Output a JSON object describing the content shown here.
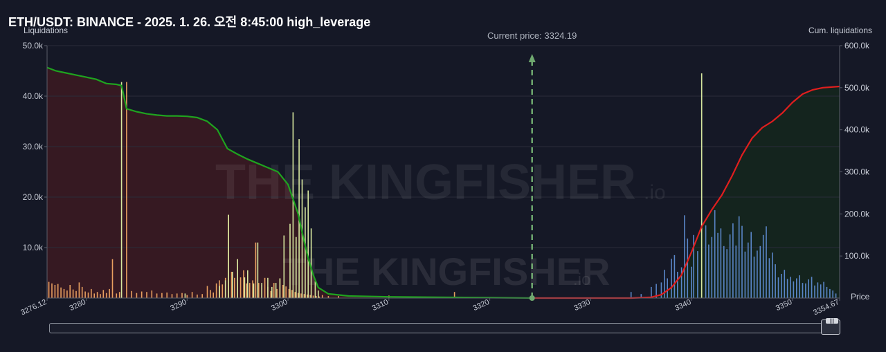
{
  "header": {
    "title": "ETH/USDT: BINANCE - 2025. 1. 26. 오전 8:45:00 high_leverage"
  },
  "watermark": {
    "brand": "THE KINGFISHER",
    "suffix": ".io"
  },
  "chart_data": {
    "type": "bar",
    "ylabel_left": "Liquidations",
    "ylabel_right": "Cum. liquidations",
    "xlabel": "Price",
    "current_price_label": "Current price: 3324.19",
    "current_price": 3324.19,
    "xlim": [
      3276.12,
      3354.67
    ],
    "ylim_left": [
      0,
      50000
    ],
    "ylim_right": [
      0,
      600000
    ],
    "x_ticks": [
      "3276.12",
      "3280",
      "3290",
      "3300",
      "3310",
      "3320",
      "3330",
      "3340",
      "3350",
      "3354.67"
    ],
    "x_tick_values": [
      3276.12,
      3280,
      3290,
      3300,
      3310,
      3320,
      3330,
      3340,
      3350,
      3354.67
    ],
    "y_ticks_left": [
      "10.0k",
      "20.0k",
      "30.0k",
      "40.0k",
      "50.0k"
    ],
    "y_tick_values_left": [
      10000,
      20000,
      30000,
      40000,
      50000
    ],
    "y_ticks_right": [
      "100.0k",
      "200.0k",
      "300.0k",
      "400.0k",
      "500.0k",
      "600.0k"
    ],
    "y_tick_values_right": [
      100000,
      200000,
      300000,
      400000,
      500000,
      600000
    ],
    "colors": {
      "long_bars": "#e8a060",
      "short_bars": "#5a86c8",
      "highlight_bars": "#d8e8a0",
      "cum_long_line": "#1fa31f",
      "cum_short_line": "#e01e1e",
      "long_fill": "#3a1a22",
      "short_fill": "#14261e",
      "current_price_line": "#6fa86f",
      "grid": "#2a2d3a"
    },
    "series": [
      {
        "name": "Cumulative long liquidations",
        "x": [
          3276.12,
          3277,
          3278,
          3279,
          3280,
          3281,
          3282,
          3283,
          3283.5,
          3284,
          3285,
          3286,
          3287,
          3288,
          3289,
          3290,
          3291,
          3292,
          3293,
          3294,
          3295,
          3296,
          3297,
          3298,
          3299,
          3300,
          3300.5,
          3301,
          3301.5,
          3302,
          3302.5,
          3303,
          3304,
          3306,
          3310,
          3315,
          3320,
          3324.19
        ],
        "values": [
          548000,
          540000,
          535000,
          530000,
          525000,
          520000,
          510000,
          508000,
          505000,
          450000,
          443000,
          438000,
          435000,
          433000,
          433000,
          432000,
          429000,
          420000,
          400000,
          355000,
          342000,
          330000,
          320000,
          310000,
          300000,
          270000,
          235000,
          200000,
          145000,
          95000,
          55000,
          25000,
          10000,
          5000,
          3000,
          2000,
          1000,
          0
        ]
      },
      {
        "name": "Cumulative short liquidations",
        "x": [
          3324.19,
          3330,
          3334,
          3336,
          3337,
          3338,
          3339,
          3340,
          3341,
          3342,
          3343,
          3344,
          3345,
          3346,
          3347,
          3348,
          3349,
          3350,
          3351,
          3352,
          3353,
          3354.67
        ],
        "values": [
          0,
          0,
          0,
          2000,
          8000,
          25000,
          55000,
          110000,
          170000,
          210000,
          245000,
          290000,
          340000,
          380000,
          405000,
          420000,
          440000,
          465000,
          485000,
          495000,
          500000,
          503000
        ]
      }
    ],
    "long_liquidations": {
      "x": [
        3276.3,
        3276.6,
        3276.9,
        3277.2,
        3277.5,
        3277.8,
        3278.1,
        3278.4,
        3278.7,
        3279,
        3279.3,
        3279.6,
        3279.9,
        3280.2,
        3280.5,
        3280.8,
        3281.1,
        3281.4,
        3281.7,
        3282,
        3282.3,
        3282.6,
        3283,
        3283.3,
        3284,
        3284.5,
        3285,
        3285.5,
        3286,
        3286.5,
        3287,
        3287.5,
        3288,
        3288.5,
        3289,
        3289.5,
        3290,
        3290.5,
        3291,
        3291.5,
        3292,
        3292.3,
        3292.6,
        3292.9,
        3293.2,
        3293.5,
        3293.8,
        3294.1,
        3294.4,
        3294.7,
        3295,
        3295.3,
        3295.6,
        3295.9,
        3296.2,
        3296.5,
        3296.8,
        3297.1,
        3297.4,
        3297.7,
        3298,
        3298.3,
        3298.6,
        3298.9,
        3299.2,
        3299.5,
        3299.8,
        3300.1,
        3300.4,
        3300.7,
        3301,
        3301.3,
        3301.6,
        3301.9,
        3302.2,
        3302.5,
        3302.8,
        3303.1,
        3303.4,
        3304,
        3305,
        3310,
        3316.5
      ],
      "values": [
        3200,
        2900,
        2600,
        2800,
        2100,
        1800,
        1500,
        2600,
        1700,
        1400,
        3100,
        2200,
        1300,
        1100,
        1800,
        900,
        1200,
        800,
        1600,
        1000,
        1800,
        7700,
        900,
        1200,
        42800,
        1400,
        1000,
        1300,
        1200,
        1500,
        900,
        1000,
        1100,
        800,
        900,
        1000,
        600,
        1200,
        700,
        800,
        2400,
        1600,
        1100,
        2900,
        3500,
        2700,
        4000,
        16500,
        5200,
        4000,
        7700,
        4100,
        5500,
        2900,
        3000,
        3500,
        11000,
        3000,
        2600,
        4000,
        2200,
        1400,
        3000,
        1800,
        3900,
        2600,
        2300,
        1800,
        1600,
        1200,
        1000,
        900,
        800,
        700,
        600,
        500,
        400,
        300,
        600,
        400,
        400,
        500,
        1200
      ]
    },
    "highlight_liquidations": {
      "x": [
        3283.5,
        3289.8,
        3293.2,
        3293.8,
        3294.1,
        3294.5,
        3295,
        3295.7,
        3296,
        3296.6,
        3297,
        3297.4,
        3298,
        3298.4,
        3298.8,
        3299.2,
        3299.6,
        3300.2,
        3300.5,
        3300.8,
        3301.1,
        3301.4,
        3301.7,
        3302,
        3302.3,
        3302.7,
        3303
      ],
      "values": [
        42800,
        900,
        2400,
        3500,
        16500,
        5200,
        7700,
        4100,
        5500,
        2900,
        11000,
        3000,
        4000,
        2200,
        3000,
        3900,
        12400,
        14700,
        36800,
        12100,
        31500,
        23500,
        18000,
        21300,
        13800,
        3300,
        1500
      ]
    },
    "short_liquidations": {
      "x": [
        3334,
        3335,
        3336,
        3336.5,
        3337,
        3337.3,
        3337.6,
        3338,
        3338.3,
        3338.6,
        3339,
        3339.3,
        3339.6,
        3340,
        3340.2,
        3340.6,
        3341,
        3341.4,
        3341.7,
        3342,
        3342.3,
        3342.6,
        3342.9,
        3343.2,
        3343.5,
        3343.8,
        3344.1,
        3344.4,
        3344.7,
        3345,
        3345.3,
        3345.6,
        3345.9,
        3346.2,
        3346.5,
        3346.8,
        3347.1,
        3347.4,
        3347.7,
        3348,
        3348.3,
        3348.6,
        3348.9,
        3349.2,
        3349.5,
        3349.8,
        3350.1,
        3350.4,
        3350.7,
        3351,
        3351.3,
        3351.6,
        3351.9,
        3352.2,
        3352.5,
        3352.8,
        3353.1,
        3353.4,
        3353.7,
        3354,
        3354.3
      ],
      "values": [
        1200,
        800,
        2200,
        2800,
        3100,
        5600,
        3900,
        7800,
        8500,
        5200,
        6100,
        16400,
        11800,
        6200,
        12500,
        9300,
        15200,
        14400,
        10600,
        12100,
        17400,
        12900,
        13800,
        10300,
        9700,
        12600,
        14800,
        10400,
        16200,
        14300,
        9200,
        11000,
        13100,
        8200,
        9400,
        10300,
        12500,
        14200,
        7900,
        9000,
        6700,
        4100,
        4800,
        5600,
        3800,
        4200,
        3300,
        3900,
        4500,
        3000,
        2900,
        3700,
        4200,
        2500,
        3100,
        2700,
        3200,
        2200,
        1800,
        1500,
        900
      ]
    },
    "short_highlight": {
      "x": [
        3341
      ],
      "values": [
        44500
      ]
    }
  }
}
